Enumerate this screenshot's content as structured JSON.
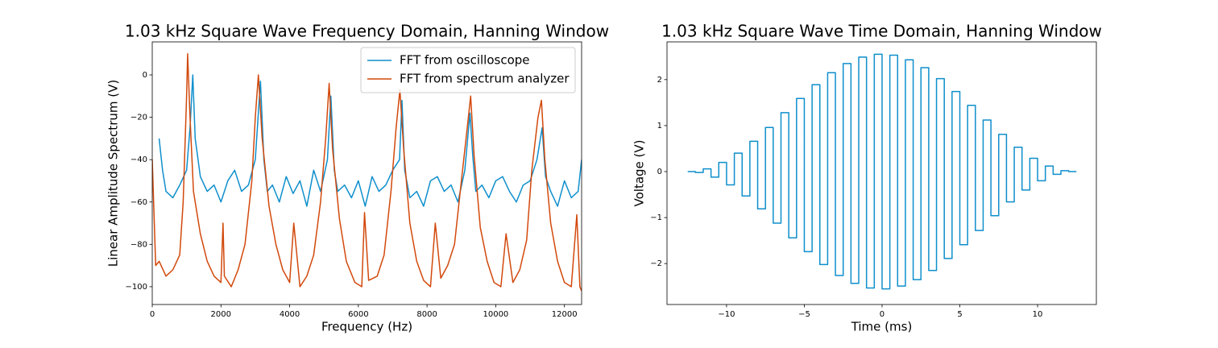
{
  "chart_data": [
    {
      "type": "line",
      "title": "1.03 kHz Square Wave Frequency Domain, Hanning Window",
      "xlabel": "Frequency (Hz)",
      "ylabel": "Linear Amplitude Spectrum (V)",
      "xlim": [
        0,
        12500
      ],
      "ylim": [
        -108.4,
        15.6
      ],
      "xticks": [
        0,
        2000,
        4000,
        6000,
        8000,
        10000,
        12000
      ],
      "yticks": [
        {
          "value": -100,
          "label": "−100"
        },
        {
          "value": -80,
          "label": "−80"
        },
        {
          "value": -60,
          "label": "−60"
        },
        {
          "value": -40,
          "label": "−40"
        },
        {
          "value": -20,
          "label": "−20"
        },
        0
      ],
      "legend": "upper right",
      "series": [
        {
          "name": "FFT from oscilloscope",
          "color": "#0f8fcc",
          "x": [
            200,
            300,
            400,
            600,
            800,
            1000,
            1100,
            1180,
            1250,
            1400,
            1600,
            1800,
            2000,
            2200,
            2400,
            2600,
            2800,
            3000,
            3150,
            3250,
            3350,
            3500,
            3700,
            3900,
            4100,
            4300,
            4500,
            4700,
            4900,
            5100,
            5200,
            5300,
            5400,
            5600,
            5800,
            6000,
            6200,
            6400,
            6600,
            6800,
            7000,
            7200,
            7270,
            7350,
            7500,
            7700,
            7900,
            8100,
            8300,
            8500,
            8700,
            8900,
            9100,
            9250,
            9330,
            9420,
            9600,
            9800,
            10000,
            10200,
            10400,
            10600,
            10800,
            11000,
            11200,
            11350,
            11450,
            11600,
            11800,
            12000,
            12200,
            12400,
            12500
          ],
          "values": [
            -30,
            -45,
            -55,
            -58,
            -52,
            -45,
            -25,
            0,
            -30,
            -48,
            -55,
            -52,
            -60,
            -50,
            -45,
            -55,
            -52,
            -40,
            -3,
            -40,
            -55,
            -52,
            -60,
            -48,
            -56,
            -50,
            -62,
            -45,
            -55,
            -40,
            -10,
            -45,
            -55,
            -52,
            -58,
            -50,
            -62,
            -48,
            -55,
            -52,
            -45,
            -40,
            -12,
            -45,
            -58,
            -55,
            -62,
            -50,
            -48,
            -55,
            -52,
            -60,
            -45,
            -18,
            -38,
            -55,
            -52,
            -58,
            -50,
            -48,
            -55,
            -60,
            -52,
            -50,
            -40,
            -25,
            -48,
            -55,
            -62,
            -50,
            -58,
            -55,
            -40
          ]
        },
        {
          "name": "FFT from spectrum analyzer",
          "color": "#d2490c",
          "x": [
            0,
            100,
            200,
            400,
            600,
            800,
            900,
            1000,
            1030,
            1100,
            1200,
            1400,
            1600,
            1800,
            2000,
            2060,
            2100,
            2300,
            2500,
            2700,
            2900,
            3000,
            3090,
            3200,
            3400,
            3600,
            3800,
            4000,
            4120,
            4300,
            4500,
            4700,
            4900,
            5050,
            5150,
            5250,
            5450,
            5650,
            5900,
            6100,
            6180,
            6300,
            6550,
            6750,
            6950,
            7100,
            7210,
            7320,
            7500,
            7700,
            7900,
            8100,
            8240,
            8400,
            8600,
            8800,
            9000,
            9170,
            9270,
            9370,
            9550,
            9750,
            9950,
            10150,
            10300,
            10500,
            10700,
            10900,
            11050,
            11230,
            11330,
            11430,
            11600,
            11800,
            12000,
            12200,
            12360,
            12450,
            12500
          ],
          "values": [
            -40,
            -90,
            -88,
            -95,
            -92,
            -85,
            -60,
            -10,
            10,
            -20,
            -55,
            -75,
            -88,
            -95,
            -98,
            -70,
            -95,
            -100,
            -92,
            -80,
            -50,
            -20,
            0,
            -30,
            -62,
            -80,
            -92,
            -98,
            -70,
            -100,
            -95,
            -85,
            -60,
            -30,
            -4,
            -35,
            -68,
            -88,
            -98,
            -100,
            -65,
            -97,
            -95,
            -85,
            -55,
            -25,
            -7,
            -35,
            -70,
            -88,
            -97,
            -100,
            -70,
            -96,
            -90,
            -80,
            -50,
            -25,
            -10,
            -38,
            -72,
            -88,
            -98,
            -100,
            -75,
            -98,
            -92,
            -78,
            -45,
            -20,
            -12,
            -40,
            -70,
            -88,
            -98,
            -100,
            -66,
            -100,
            -102
          ]
        }
      ]
    },
    {
      "type": "line",
      "title": "1.03 kHz Square Wave Time Domain, Hanning Window",
      "xlabel": "Time (ms)",
      "ylabel": "Voltage (V)",
      "xlim": [
        -13.83,
        13.78
      ],
      "ylim": [
        -2.89,
        2.82
      ],
      "xticks": [
        {
          "value": -10,
          "label": "−10"
        },
        {
          "value": -5,
          "label": "−5"
        },
        0,
        5,
        10
      ],
      "yticks": [
        {
          "value": -2,
          "label": "−2"
        },
        {
          "value": -1,
          "label": "−1"
        },
        0,
        1,
        2
      ],
      "series": [
        {
          "color": "#0f8fcc",
          "x": [
            -12.5,
            -12,
            -12,
            -11.5,
            -11.5,
            -11,
            -11,
            -10.5,
            -10.5,
            -10,
            -10,
            -9.5,
            -9.5,
            -9,
            -9,
            -8.5,
            -8.5,
            -8,
            -8,
            -7.5,
            -7.5,
            -7,
            -7,
            -6.5,
            -6.5,
            -6,
            -6,
            -5.5,
            -5.5,
            -5,
            -5,
            -4.5,
            -4.5,
            -4,
            -4,
            -3.5,
            -3.5,
            -3,
            -3,
            -2.5,
            -2.5,
            -2,
            -2,
            -1.5,
            -1.5,
            -1,
            -1,
            -0.5,
            -0.5,
            0,
            0,
            0.5,
            0.5,
            1,
            1,
            1.5,
            1.5,
            2,
            2,
            2.5,
            2.5,
            3,
            3,
            3.5,
            3.5,
            4,
            4,
            4.5,
            4.5,
            5,
            5,
            5.5,
            5.5,
            6,
            6,
            6.5,
            6.5,
            7,
            7,
            7.5,
            7.5,
            8,
            8,
            8.5,
            8.5,
            9,
            9,
            9.5,
            9.5,
            10,
            10,
            10.5,
            10.5,
            11,
            11,
            11.5,
            11.5,
            12,
            12,
            12.5
          ],
          "values": [
            0,
            0,
            -0.02,
            -0.02,
            0.06,
            0.06,
            -0.12,
            -0.12,
            0.2,
            0.2,
            -0.29,
            -0.29,
            0.4,
            0.4,
            -0.53,
            -0.53,
            0.66,
            0.66,
            -0.81,
            -0.81,
            0.96,
            0.96,
            -1.12,
            -1.12,
            1.28,
            1.28,
            -1.44,
            -1.44,
            1.59,
            1.59,
            -1.74,
            -1.74,
            1.89,
            1.89,
            -2.02,
            -2.02,
            2.15,
            2.15,
            -2.26,
            -2.26,
            2.35,
            2.35,
            -2.43,
            -2.43,
            2.49,
            2.49,
            -2.53,
            -2.53,
            2.55,
            2.55,
            -2.55,
            -2.55,
            2.53,
            2.53,
            -2.49,
            -2.49,
            2.43,
            2.43,
            -2.35,
            -2.35,
            2.26,
            2.26,
            -2.15,
            -2.15,
            2.02,
            2.02,
            -1.89,
            -1.89,
            1.74,
            1.74,
            -1.59,
            -1.59,
            1.44,
            1.44,
            -1.28,
            -1.28,
            1.12,
            1.12,
            -0.96,
            -0.96,
            0.81,
            0.81,
            -0.66,
            -0.66,
            0.53,
            0.53,
            -0.4,
            -0.4,
            0.29,
            0.29,
            -0.2,
            -0.2,
            0.12,
            0.12,
            -0.06,
            -0.06,
            0.02,
            0.02,
            0,
            0
          ]
        }
      ]
    }
  ]
}
